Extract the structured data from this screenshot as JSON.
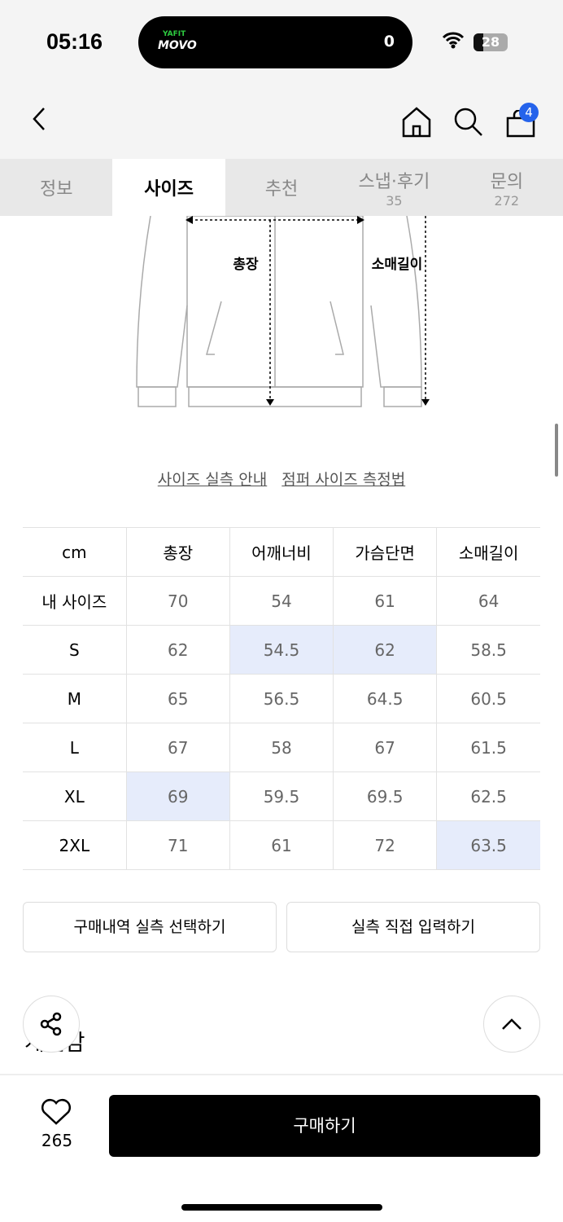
{
  "status": {
    "time": "05:16",
    "island_brand_top": "YAFIT",
    "island_brand": "MOVO",
    "island_value": "0",
    "battery": "28"
  },
  "header": {
    "cart_count": "4"
  },
  "tabs": [
    {
      "label": "정보"
    },
    {
      "label": "사이즈",
      "active": true
    },
    {
      "label": "추천"
    },
    {
      "label": "스냅·후기",
      "count": "35"
    },
    {
      "label": "문의",
      "count": "272"
    }
  ],
  "diagram": {
    "label_length": "총장",
    "label_sleeve": "소매길이"
  },
  "links": {
    "guide": "사이즈 실측 안내",
    "method": "점퍼 사이즈 측정법"
  },
  "size_table": {
    "headers": [
      "cm",
      "총장",
      "어깨너비",
      "가슴단면",
      "소매길이"
    ],
    "rows": [
      [
        "내 사이즈",
        "70",
        "54",
        "61",
        "64"
      ],
      [
        "S",
        "62",
        "54.5",
        "62",
        "58.5"
      ],
      [
        "M",
        "65",
        "56.5",
        "64.5",
        "60.5"
      ],
      [
        "L",
        "67",
        "58",
        "67",
        "61.5"
      ],
      [
        "XL",
        "69",
        "59.5",
        "69.5",
        "62.5"
      ],
      [
        "2XL",
        "71",
        "61",
        "72",
        "63.5"
      ]
    ],
    "highlight_color": "#e6ecfb"
  },
  "buttons": {
    "history": "구매내역 실측 선택하기",
    "manual": "실측 직접 입력하기"
  },
  "section_title": "계절감",
  "bottom": {
    "likes": "265",
    "buy": "구매하기"
  }
}
